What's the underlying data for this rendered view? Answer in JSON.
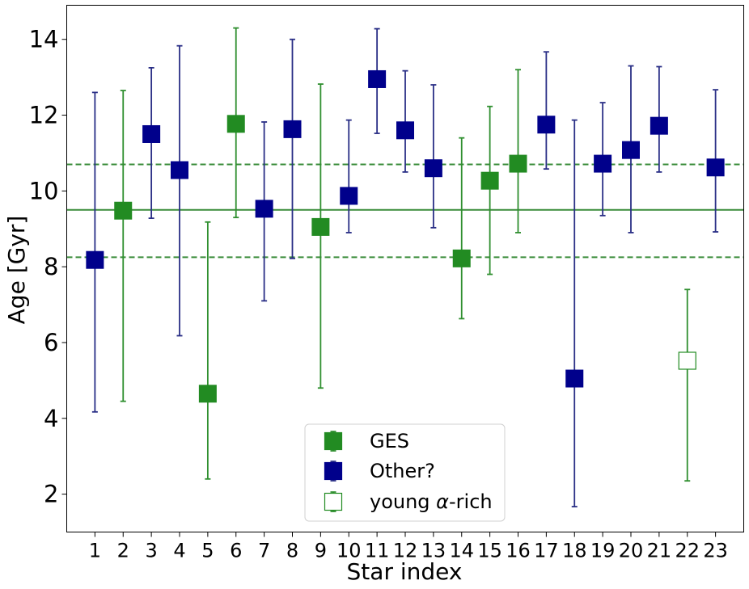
{
  "chart_data": {
    "type": "scatter",
    "xlabel": "Star index",
    "ylabel": "Age [Gyr]",
    "xlim": [
      0,
      24
    ],
    "ylim": [
      1,
      14.9
    ],
    "xticks": [
      1,
      2,
      3,
      4,
      5,
      6,
      7,
      8,
      9,
      10,
      11,
      12,
      13,
      14,
      15,
      16,
      17,
      18,
      19,
      20,
      21,
      22,
      23
    ],
    "yticks": [
      2,
      4,
      6,
      8,
      10,
      12,
      14
    ],
    "grid": false,
    "legend_position": "lower-center",
    "reference_lines": {
      "color": "#3a8c3a",
      "median": 9.5,
      "lower": 8.25,
      "upper": 10.7
    },
    "series": [
      {
        "name": "GES",
        "color": "#228B22",
        "marker": "filled-square",
        "points": [
          {
            "x": 2,
            "y": 9.48,
            "ylo": 4.45,
            "yhi": 12.65
          },
          {
            "x": 5,
            "y": 4.65,
            "ylo": 2.4,
            "yhi": 9.18
          },
          {
            "x": 6,
            "y": 11.77,
            "ylo": 9.3,
            "yhi": 14.3
          },
          {
            "x": 9,
            "y": 9.05,
            "ylo": 4.8,
            "yhi": 12.82
          },
          {
            "x": 14,
            "y": 8.22,
            "ylo": 6.63,
            "yhi": 11.4
          },
          {
            "x": 15,
            "y": 10.27,
            "ylo": 7.8,
            "yhi": 12.23
          },
          {
            "x": 16,
            "y": 10.72,
            "ylo": 8.9,
            "yhi": 13.2
          }
        ]
      },
      {
        "name": "Other?",
        "color": "#00008B",
        "marker": "filled-square",
        "points": [
          {
            "x": 1,
            "y": 8.18,
            "ylo": 4.17,
            "yhi": 12.6
          },
          {
            "x": 3,
            "y": 11.5,
            "ylo": 9.28,
            "yhi": 13.25
          },
          {
            "x": 4,
            "y": 10.55,
            "ylo": 6.18,
            "yhi": 13.83
          },
          {
            "x": 7,
            "y": 9.53,
            "ylo": 7.1,
            "yhi": 11.82
          },
          {
            "x": 8,
            "y": 11.63,
            "ylo": 8.22,
            "yhi": 14.0
          },
          {
            "x": 10,
            "y": 9.87,
            "ylo": 8.9,
            "yhi": 11.87
          },
          {
            "x": 11,
            "y": 12.95,
            "ylo": 11.52,
            "yhi": 14.28
          },
          {
            "x": 12,
            "y": 11.6,
            "ylo": 10.5,
            "yhi": 13.17
          },
          {
            "x": 13,
            "y": 10.6,
            "ylo": 9.03,
            "yhi": 12.8
          },
          {
            "x": 17,
            "y": 11.75,
            "ylo": 10.58,
            "yhi": 13.67
          },
          {
            "x": 18,
            "y": 5.05,
            "ylo": 1.67,
            "yhi": 11.87
          },
          {
            "x": 19,
            "y": 10.72,
            "ylo": 9.35,
            "yhi": 12.33
          },
          {
            "x": 20,
            "y": 11.08,
            "ylo": 8.9,
            "yhi": 13.3
          },
          {
            "x": 21,
            "y": 11.72,
            "ylo": 10.5,
            "yhi": 13.28
          },
          {
            "x": 23,
            "y": 10.62,
            "ylo": 8.92,
            "yhi": 12.67
          }
        ]
      },
      {
        "name": "young α-rich",
        "color": "#228B22",
        "marker": "open-square",
        "points": [
          {
            "x": 22,
            "y": 5.52,
            "ylo": 2.35,
            "yhi": 7.4
          }
        ]
      }
    ],
    "legend": {
      "entries": [
        {
          "label": "GES",
          "color": "#228B22",
          "marker": "filled-square"
        },
        {
          "label": "Other?",
          "color": "#00008B",
          "marker": "filled-square"
        },
        {
          "label_prefix": "young ",
          "label_symbol": "α",
          "label_suffix": "-rich",
          "color": "#228B22",
          "marker": "open-square"
        }
      ]
    }
  }
}
